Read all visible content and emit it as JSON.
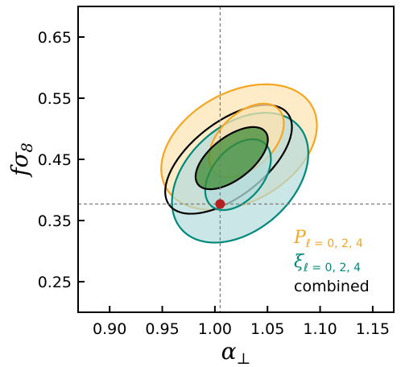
{
  "chart_data": {
    "type": "scatter",
    "title": "",
    "xlabel": "α⊥",
    "ylabel": "fσ8",
    "xlim": [
      0.87,
      1.17
    ],
    "ylim": [
      0.2,
      0.7
    ],
    "xticks": [
      0.9,
      0.95,
      1.0,
      1.05,
      1.1,
      1.15
    ],
    "xtick_labels": [
      "0.90",
      "0.95",
      "1.00",
      "1.05",
      "1.10",
      "1.15"
    ],
    "yticks": [
      0.25,
      0.35,
      0.45,
      0.55,
      0.65
    ],
    "ytick_labels": [
      "0.25",
      "0.35",
      "0.45",
      "0.55",
      "0.65"
    ],
    "grid": false,
    "legend_position": "bottom-right",
    "fiducial": {
      "x": 1.005,
      "y": 0.377,
      "color": "#b22222"
    },
    "series": [
      {
        "name": "P_{ℓ=0,2,4}",
        "legend_label": {
          "symbol": "P",
          "subscript": "ℓ = 0, 2, 4"
        },
        "color": "#f5a623",
        "fill_color": "#fde3b0",
        "contours": [
          {
            "level": "2σ",
            "cx": 1.023,
            "cy": 0.47,
            "rx": 0.066,
            "ry": 0.108,
            "tilt_deg": 23,
            "fill": true
          },
          {
            "level": "1σ",
            "cx": 1.03,
            "cy": 0.481,
            "rx": 0.03,
            "ry": 0.063,
            "tilt_deg": 20,
            "fill": true
          }
        ]
      },
      {
        "name": "ξ_{ℓ=0,2,4}",
        "legend_label": {
          "symbol": "ξ",
          "subscript": "ℓ = 0, 2, 4"
        },
        "color": "#00897b",
        "fill_color": "#b3dcdc",
        "contours": [
          {
            "level": "2σ",
            "cx": 1.024,
            "cy": 0.42,
            "rx": 0.058,
            "ry": 0.11,
            "tilt_deg": 18,
            "fill": true
          },
          {
            "level": "1σ",
            "cx": 1.022,
            "cy": 0.425,
            "rx": 0.027,
            "ry": 0.06,
            "tilt_deg": 17,
            "fill": true
          }
        ]
      },
      {
        "name": "combined",
        "legend_label": {
          "symbol": "",
          "subscript": "",
          "text": "combined"
        },
        "color": "#000000",
        "fill_color": "#3f8a34",
        "contours": [
          {
            "level": "2σ",
            "cx": 1.013,
            "cy": 0.45,
            "rx": 0.044,
            "ry": 0.098,
            "tilt_deg": 28,
            "fill": false
          },
          {
            "level": "1σ",
            "cx": 1.016,
            "cy": 0.452,
            "rx": 0.025,
            "ry": 0.056,
            "tilt_deg": 28,
            "fill": true
          }
        ]
      }
    ]
  }
}
